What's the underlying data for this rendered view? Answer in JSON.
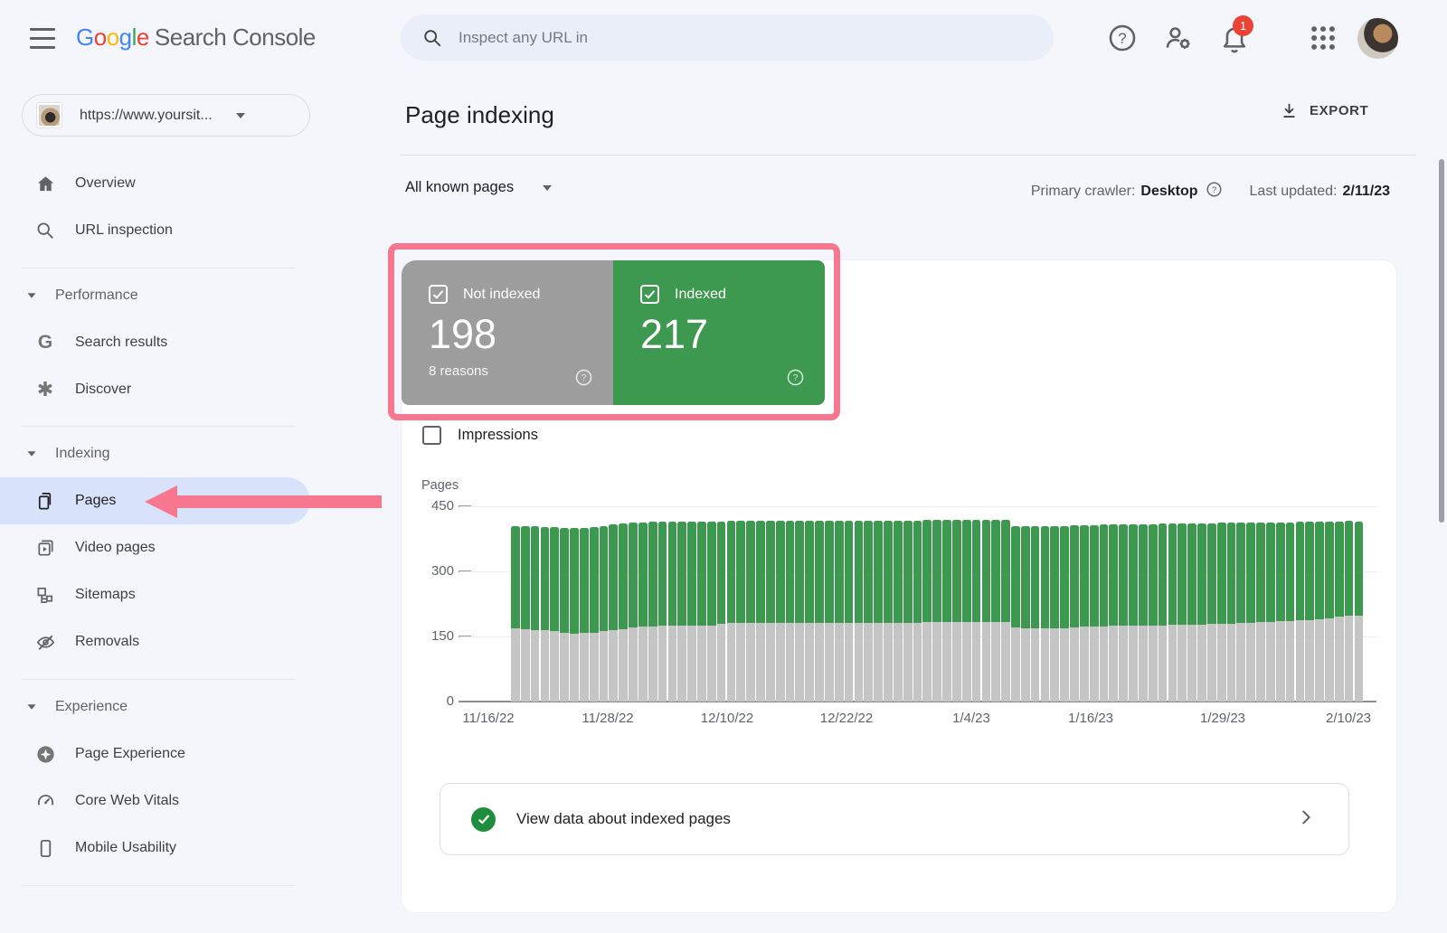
{
  "topbar": {
    "logo_letters": [
      "G",
      "o",
      "o",
      "g",
      "l",
      "e"
    ],
    "logo_product": "Search Console",
    "search_placeholder": "Inspect any URL in",
    "notification_count": "1"
  },
  "sidebar": {
    "property_label": "https://www.yoursit...",
    "items": [
      {
        "label": "Overview"
      },
      {
        "label": "URL inspection"
      }
    ],
    "sections": [
      {
        "label": "Performance",
        "items": [
          {
            "label": "Search results"
          },
          {
            "label": "Discover"
          }
        ]
      },
      {
        "label": "Indexing",
        "items": [
          {
            "label": "Pages",
            "selected": true
          },
          {
            "label": "Video pages"
          },
          {
            "label": "Sitemaps"
          },
          {
            "label": "Removals"
          }
        ]
      },
      {
        "label": "Experience",
        "items": [
          {
            "label": "Page Experience"
          },
          {
            "label": "Core Web Vitals"
          },
          {
            "label": "Mobile Usability"
          }
        ]
      }
    ]
  },
  "header": {
    "title": "Page indexing",
    "export_label": "EXPORT"
  },
  "filter_bar": {
    "filter_label": "All known pages",
    "primary_crawler_label": "Primary crawler:",
    "primary_crawler_value": "Desktop",
    "last_updated_label": "Last updated:",
    "last_updated_value": "2/11/23"
  },
  "summary_cards": {
    "not_indexed": {
      "label": "Not indexed",
      "value": "198",
      "sub": "8 reasons",
      "color": "#9d9d9d"
    },
    "indexed": {
      "label": "Indexed",
      "value": "217",
      "color": "#3e9950"
    }
  },
  "impressions_label": "Impressions",
  "chart_data": {
    "type": "bar",
    "stacked": true,
    "ylabel": "Pages",
    "ylim": [
      0,
      450
    ],
    "y_tick_labels": [
      "450",
      "300",
      "150",
      "0"
    ],
    "x_tick_labels": [
      "11/16/22",
      "11/28/22",
      "12/10/22",
      "12/22/22",
      "1/4/23",
      "1/16/23",
      "1/29/23",
      "2/10/23"
    ],
    "grid": "horizontal",
    "legend_position": "none",
    "series": [
      {
        "name": "Not indexed",
        "color": "#c5c5c5",
        "values": [
          168,
          166,
          164,
          164,
          163,
          158,
          157,
          158,
          159,
          162,
          164,
          167,
          170,
          172,
          173,
          174,
          174,
          175,
          175,
          176,
          176,
          180,
          181,
          181,
          181,
          182,
          182,
          182,
          182,
          182,
          182,
          182,
          182,
          182,
          182,
          182,
          182,
          182,
          182,
          182,
          182,
          182,
          183,
          183,
          183,
          183,
          183,
          184,
          184,
          184,
          184,
          170,
          169,
          169,
          169,
          169,
          169,
          170,
          172,
          173,
          173,
          174,
          174,
          174,
          175,
          176,
          176,
          177,
          177,
          178,
          178,
          179,
          180,
          180,
          181,
          182,
          183,
          184,
          185,
          186,
          187,
          188,
          190,
          192,
          196,
          198,
          198
        ]
      },
      {
        "name": "Indexed",
        "color": "#3e9950",
        "values": [
          237,
          238,
          240,
          239,
          239,
          242,
          243,
          243,
          243,
          242,
          244,
          243,
          242,
          241,
          241,
          240,
          240,
          240,
          240,
          239,
          239,
          235,
          235,
          235,
          235,
          234,
          234,
          234,
          235,
          235,
          235,
          235,
          235,
          235,
          235,
          235,
          235,
          235,
          235,
          235,
          235,
          235,
          235,
          235,
          235,
          235,
          235,
          235,
          235,
          235,
          234,
          235,
          235,
          235,
          235,
          236,
          236,
          236,
          235,
          234,
          235,
          234,
          234,
          235,
          234,
          233,
          234,
          233,
          233,
          233,
          233,
          232,
          232,
          232,
          231,
          230,
          230,
          229,
          228,
          227,
          227,
          226,
          224,
          222,
          219,
          218,
          217
        ]
      }
    ]
  },
  "view_data_row": {
    "label": "View data about indexed pages"
  },
  "colors": {
    "annotation_pink": "#f7778f",
    "selected_nav": "#d9e2fb",
    "badge_red": "#ea4335",
    "card_gray": "#9d9d9d",
    "card_green": "#3e9950",
    "bar_gray": "#c5c5c5",
    "bar_green": "#3e9950"
  }
}
